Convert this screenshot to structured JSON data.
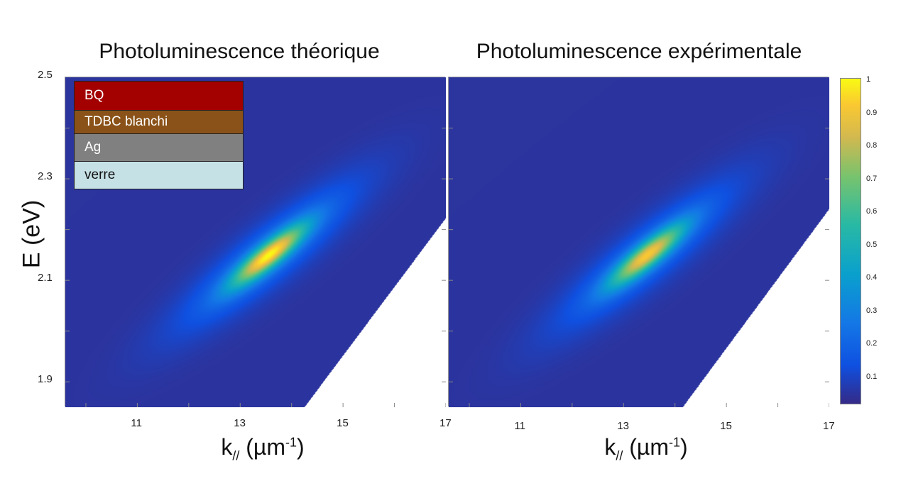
{
  "chart_data": {
    "type": "heatmap",
    "ylabel": "E (eV)",
    "xlabel_main": "k",
    "xlabel_sub": "//",
    "xlabel_unit": "(µm",
    "xlabel_sup": "-1",
    "xlabel_close": ")",
    "xlim": [
      9.6,
      17.0
    ],
    "ylim": [
      1.85,
      2.5
    ],
    "xticks": [
      "11",
      "13",
      "15",
      "17"
    ],
    "yticks": [
      "1.9",
      "2.1",
      "2.3",
      "2.5"
    ],
    "colorbar": {
      "range": [
        0,
        1
      ],
      "ticks": [
        "0.1",
        "0.2",
        "0.3",
        "0.4",
        "0.5",
        "0.6",
        "0.7",
        "0.8",
        "0.9",
        "1"
      ]
    },
    "panels": [
      {
        "title": "Photoluminescence théorique",
        "peak_k": 13.55,
        "peak_E": 2.15,
        "peak_value": 1.0,
        "background_value": 0.03,
        "white_region_edge": [
          [
            14.24,
            1.85
          ],
          [
            17.0,
            2.224
          ]
        ]
      },
      {
        "title": "Photoluminescence expérimentale",
        "peak_k": 13.45,
        "peak_E": 2.15,
        "peak_value": 0.92,
        "background_value": 0.03,
        "white_region_edge": [
          [
            14.14,
            1.85
          ],
          [
            17.0,
            2.242
          ]
        ]
      }
    ],
    "inset_legend": [
      {
        "label": "BQ",
        "color": "#a30000",
        "text_color": "#ffffff"
      },
      {
        "label": "TDBC blanchi",
        "color": "#8a5218",
        "text_color": "#ffffff"
      },
      {
        "label": "Ag",
        "color": "#808080",
        "text_color": "#ffffff"
      },
      {
        "label": "verre",
        "color": "#c6e1e6",
        "text_color": "#111111"
      }
    ]
  }
}
